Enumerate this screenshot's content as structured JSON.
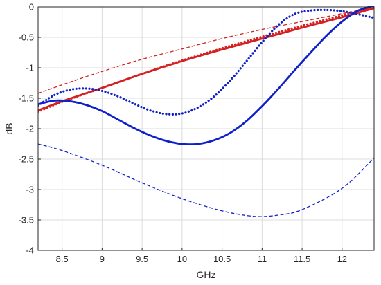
{
  "chart_data": {
    "type": "line",
    "title": "",
    "xlabel": "GHz",
    "ylabel": "dB",
    "xlim": [
      8.2,
      12.4
    ],
    "ylim": [
      -4,
      0
    ],
    "grid": true,
    "xticks": [
      8.5,
      9,
      9.5,
      10,
      10.5,
      11,
      11.5,
      12
    ],
    "xtick_labels": [
      "8.5",
      "9",
      "9.5",
      "10",
      "10.5",
      "11",
      "11.5",
      "12"
    ],
    "yticks": [
      0,
      -0.5,
      -1,
      -1.5,
      -2,
      -2.5,
      -3,
      -3.5,
      -4
    ],
    "ytick_labels": [
      "0",
      "-0.5",
      "-1",
      "-1.5",
      "-2",
      "-2.5",
      "-3",
      "-3.5",
      "-4"
    ],
    "series": [
      {
        "color": "#d42020",
        "style": "solid",
        "x": [
          8.2,
          8.5,
          9.0,
          9.5,
          10.0,
          10.5,
          11.0,
          11.5,
          12.0,
          12.4
        ],
        "y": [
          -1.7,
          -1.55,
          -1.33,
          -1.1,
          -0.89,
          -0.7,
          -0.52,
          -0.34,
          -0.17,
          -0.02
        ]
      },
      {
        "color": "#d42020",
        "style": "dashed",
        "x": [
          8.2,
          8.5,
          9.0,
          9.5,
          10.0,
          10.5,
          11.0,
          11.5,
          12.0,
          12.4
        ],
        "y": [
          -1.42,
          -1.28,
          -1.06,
          -0.86,
          -0.69,
          -0.52,
          -0.37,
          -0.24,
          -0.11,
          -0.01
        ]
      },
      {
        "color": "#d42020",
        "style": "dotted",
        "x": [
          8.2,
          8.5,
          9.0,
          9.5,
          10.0,
          10.5,
          11.0,
          11.5,
          12.0,
          12.4
        ],
        "y": [
          -1.72,
          -1.56,
          -1.33,
          -1.1,
          -0.88,
          -0.68,
          -0.49,
          -0.31,
          -0.14,
          0.0
        ]
      },
      {
        "color": "#1020c8",
        "style": "solid",
        "x": [
          8.2,
          8.4,
          8.6,
          8.8,
          9.0,
          9.2,
          9.4,
          9.6,
          9.8,
          10.0,
          10.2,
          10.4,
          10.6,
          10.8,
          11.0,
          11.2,
          11.4,
          11.6,
          11.8,
          12.0,
          12.2,
          12.4
        ],
        "y": [
          -1.6,
          -1.54,
          -1.55,
          -1.61,
          -1.71,
          -1.85,
          -1.99,
          -2.11,
          -2.2,
          -2.25,
          -2.25,
          -2.19,
          -2.07,
          -1.88,
          -1.63,
          -1.35,
          -1.05,
          -0.76,
          -0.48,
          -0.24,
          -0.06,
          0.02
        ]
      },
      {
        "color": "#1020c8",
        "style": "dashed",
        "x": [
          8.2,
          8.5,
          9.0,
          9.5,
          10.0,
          10.5,
          10.9,
          11.2,
          11.5,
          12.0,
          12.4
        ],
        "y": [
          -2.25,
          -2.36,
          -2.6,
          -2.89,
          -3.15,
          -3.35,
          -3.44,
          -3.42,
          -3.33,
          -2.98,
          -2.48
        ]
      },
      {
        "color": "#1020c8",
        "style": "dotted",
        "x": [
          8.2,
          8.4,
          8.6,
          8.8,
          9.0,
          9.2,
          9.4,
          9.6,
          9.8,
          10.0,
          10.2,
          10.4,
          10.6,
          10.8,
          11.0,
          11.2,
          11.4,
          11.6,
          11.8,
          12.0,
          12.2,
          12.4
        ],
        "y": [
          -1.62,
          -1.45,
          -1.36,
          -1.34,
          -1.38,
          -1.47,
          -1.59,
          -1.7,
          -1.76,
          -1.75,
          -1.65,
          -1.47,
          -1.21,
          -0.9,
          -0.58,
          -0.3,
          -0.12,
          -0.06,
          -0.05,
          -0.07,
          -0.12,
          -0.18
        ]
      }
    ]
  }
}
